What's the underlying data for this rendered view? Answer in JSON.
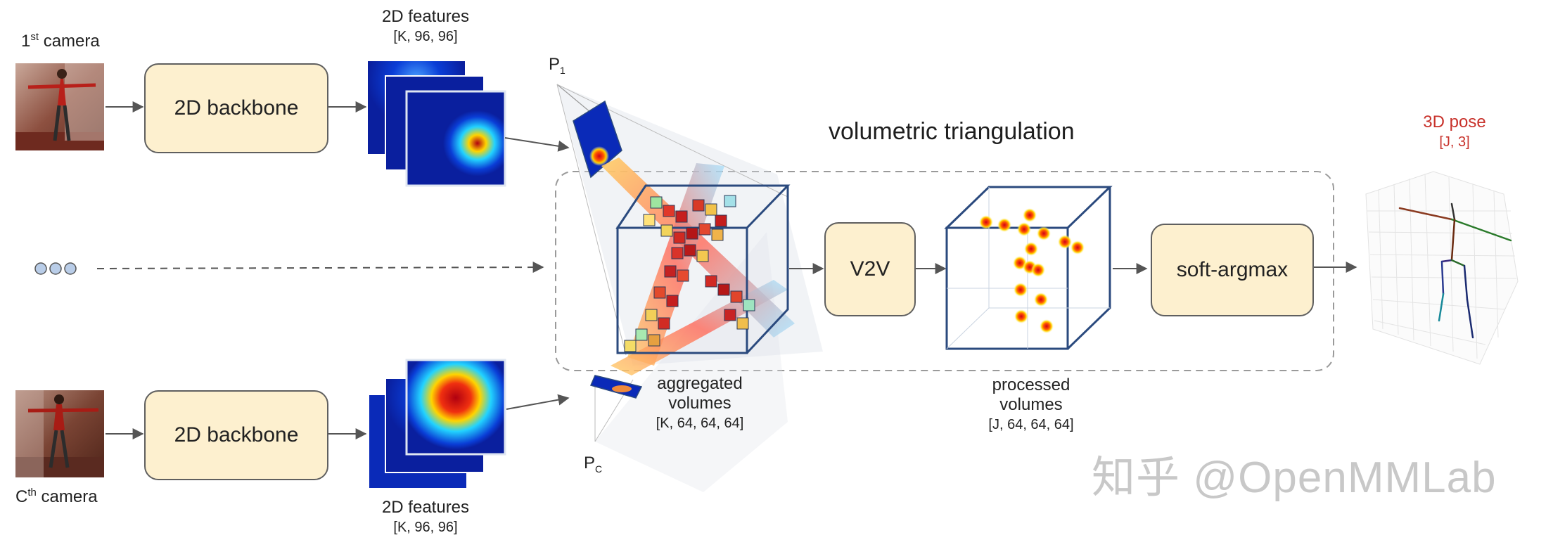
{
  "camera_top_label": {
    "base": "1",
    "sup": "st",
    "rest": " camera"
  },
  "camera_bottom_label": {
    "base": "C",
    "sup": "th",
    "rest": " camera"
  },
  "backbone_top": "2D backbone",
  "backbone_bottom": "2D backbone",
  "features_top": {
    "title": "2D features",
    "shape": "[K, 96, 96]"
  },
  "features_bottom": {
    "title": "2D features",
    "shape": "[K, 96, 96]"
  },
  "projection_top": {
    "base": "P",
    "sub": "1"
  },
  "projection_bottom": {
    "base": "P",
    "sub": "C"
  },
  "section_title": "volumetric triangulation",
  "aggregated": {
    "line1": "aggregated",
    "line2": "volumes",
    "shape": "[K, 64, 64, 64]"
  },
  "v2v": "V2V",
  "processed": {
    "line1": "processed",
    "line2": "volumes",
    "shape": "[J, 64, 64, 64]"
  },
  "softargmax": "soft-argmax",
  "output": {
    "title": "3D pose",
    "shape": "[J, 3]"
  },
  "watermark": "知乎 @OpenMMLab",
  "colors": {
    "box_fill": "#fdf0cf",
    "volume_edge": "#2b4a7e",
    "output_red": "#c8322b",
    "heatmap_bg": "#0a1f9e"
  }
}
